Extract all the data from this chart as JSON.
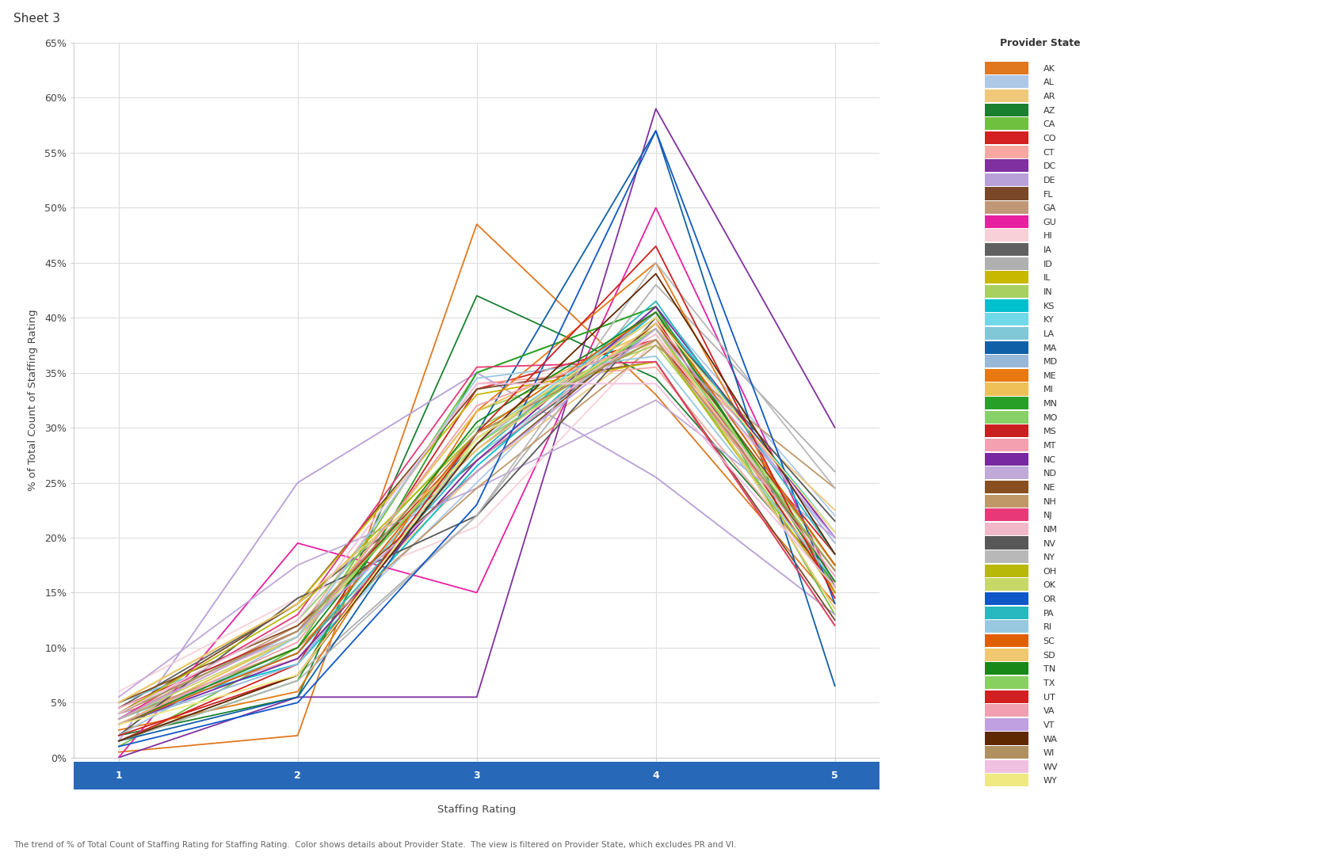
{
  "title": "Sheet 3",
  "xlabel": "Staffing Rating",
  "ylabel": "% of Total Count of Staffing Rating",
  "x_values": [
    1,
    2,
    3,
    4,
    5
  ],
  "subtitle": "The trend of % of Total Count of Staffing Rating for Staffing Rating.  Color shows details about Provider State.  The view is filtered on Provider State, which excludes PR and VI.",
  "background_color": "#ffffff",
  "plot_background": "#ffffff",
  "grid_color": "#dddddd",
  "x_axis_bar_color": "#2868b8",
  "states": [
    "AK",
    "AL",
    "AR",
    "AZ",
    "CA",
    "CO",
    "CT",
    "DC",
    "DE",
    "FL",
    "GA",
    "GU",
    "HI",
    "IA",
    "ID",
    "IL",
    "IN",
    "KS",
    "KY",
    "LA",
    "MA",
    "MD",
    "ME",
    "MI",
    "MN",
    "MO",
    "MS",
    "MT",
    "NC",
    "ND",
    "NE",
    "NH",
    "NJ",
    "NM",
    "NV",
    "NY",
    "OH",
    "OK",
    "OR",
    "PA",
    "RI",
    "SC",
    "SD",
    "TN",
    "TX",
    "UT",
    "VA",
    "VT",
    "WA",
    "WI",
    "WV",
    "WY"
  ],
  "colors": {
    "AK": "#e07820",
    "AL": "#aec8e8",
    "AR": "#f0c87a",
    "AZ": "#1a8030",
    "CA": "#70c040",
    "CO": "#d42020",
    "CT": "#f8a8a0",
    "DC": "#8030a0",
    "DE": "#b8a0d8",
    "FL": "#7a4828",
    "GA": "#c09878",
    "GU": "#e820a0",
    "HI": "#f8d0d8",
    "IA": "#606060",
    "ID": "#b0b0b0",
    "IL": "#c8b800",
    "IN": "#a8d060",
    "KS": "#00c0d0",
    "KY": "#70d8e8",
    "LA": "#80c8d8",
    "MA": "#1060a8",
    "MD": "#98b8d8",
    "ME": "#e87810",
    "MI": "#f0c058",
    "MN": "#28a028",
    "MO": "#88d068",
    "MS": "#c82020",
    "MT": "#f4a0b0",
    "NC": "#7828a0",
    "ND": "#c0a8d8",
    "NE": "#885020",
    "NH": "#c09868",
    "NJ": "#e83878",
    "NM": "#f0b8c8",
    "NV": "#585858",
    "NY": "#b8b8b8",
    "OH": "#b8b808",
    "OK": "#c8d868",
    "OR": "#1058c8",
    "PA": "#28b8c0",
    "RI": "#98c8e0",
    "SC": "#e06000",
    "SD": "#f0c870",
    "TN": "#188818",
    "TX": "#88d060",
    "UT": "#d02020",
    "VA": "#f0a0b0",
    "VT": "#c0a0e0",
    "WA": "#602800",
    "WI": "#b09060",
    "WV": "#f0c0e0",
    "WY": "#f0e880"
  },
  "data": {
    "AK": [
      0.5,
      2.0,
      48.5,
      33.0,
      14.0
    ],
    "AL": [
      3.0,
      9.0,
      25.0,
      41.0,
      22.0
    ],
    "AR": [
      3.5,
      10.0,
      26.0,
      38.0,
      22.5
    ],
    "AZ": [
      2.0,
      5.5,
      42.0,
      34.5,
      16.0
    ],
    "CA": [
      1.0,
      10.0,
      35.0,
      41.0,
      13.0
    ],
    "CO": [
      1.5,
      8.5,
      33.5,
      38.0,
      18.5
    ],
    "CT": [
      3.5,
      11.5,
      34.0,
      35.5,
      15.5
    ],
    "DC": [
      0.0,
      5.5,
      5.5,
      59.0,
      30.0
    ],
    "DE": [
      1.5,
      25.0,
      35.0,
      25.5,
      13.0
    ],
    "FL": [
      4.0,
      14.0,
      33.5,
      36.0,
      12.5
    ],
    "GA": [
      3.5,
      12.0,
      28.0,
      40.5,
      16.0
    ],
    "GU": [
      0.0,
      19.5,
      15.0,
      50.0,
      15.5
    ],
    "HI": [
      6.0,
      14.5,
      21.0,
      38.0,
      20.5
    ],
    "IA": [
      4.5,
      14.0,
      27.0,
      39.0,
      15.5
    ],
    "ID": [
      1.5,
      7.5,
      22.0,
      43.0,
      26.0
    ],
    "IL": [
      5.0,
      14.0,
      33.0,
      36.0,
      12.0
    ],
    "IN": [
      3.0,
      11.0,
      31.5,
      37.5,
      17.0
    ],
    "KS": [
      4.0,
      8.5,
      26.5,
      40.5,
      20.5
    ],
    "KY": [
      3.5,
      9.5,
      29.0,
      40.5,
      17.5
    ],
    "LA": [
      5.0,
      11.0,
      27.5,
      39.0,
      17.5
    ],
    "MA": [
      1.5,
      5.5,
      29.5,
      57.0,
      6.5
    ],
    "MD": [
      3.0,
      8.5,
      28.5,
      40.5,
      19.5
    ],
    "ME": [
      2.5,
      6.0,
      31.5,
      45.0,
      15.0
    ],
    "MI": [
      3.0,
      11.0,
      31.5,
      39.0,
      15.5
    ],
    "MN": [
      1.5,
      7.0,
      35.0,
      41.0,
      15.5
    ],
    "MO": [
      4.0,
      12.5,
      30.0,
      38.0,
      15.5
    ],
    "MS": [
      4.5,
      11.5,
      29.0,
      40.0,
      15.0
    ],
    "MT": [
      4.0,
      9.0,
      27.0,
      39.5,
      20.5
    ],
    "NC": [
      3.0,
      9.0,
      27.0,
      41.0,
      20.0
    ],
    "ND": [
      5.5,
      17.5,
      24.5,
      32.5,
      20.0
    ],
    "NE": [
      5.0,
      12.0,
      26.0,
      39.5,
      17.5
    ],
    "NH": [
      3.5,
      10.0,
      24.5,
      37.5,
      24.5
    ],
    "NJ": [
      3.5,
      13.0,
      35.5,
      36.0,
      12.0
    ],
    "NM": [
      4.5,
      11.0,
      29.0,
      38.5,
      17.0
    ],
    "NV": [
      2.0,
      14.5,
      22.0,
      40.0,
      21.5
    ],
    "NY": [
      1.5,
      7.0,
      22.0,
      45.0,
      24.5
    ],
    "OH": [
      4.0,
      13.5,
      29.5,
      38.0,
      15.0
    ],
    "OK": [
      3.5,
      11.0,
      29.0,
      39.0,
      17.5
    ],
    "OR": [
      1.0,
      5.0,
      23.0,
      57.0,
      14.0
    ],
    "PA": [
      3.0,
      9.5,
      27.5,
      41.5,
      18.5
    ],
    "RI": [
      2.0,
      11.0,
      34.5,
      36.5,
      16.0
    ],
    "SC": [
      3.0,
      9.5,
      29.5,
      40.5,
      17.5
    ],
    "SD": [
      5.0,
      14.0,
      28.0,
      39.5,
      13.5
    ],
    "TN": [
      3.0,
      10.0,
      30.5,
      40.5,
      16.0
    ],
    "TX": [
      4.0,
      11.5,
      28.5,
      39.0,
      17.0
    ],
    "UT": [
      2.0,
      7.5,
      29.5,
      46.5,
      14.5
    ],
    "VA": [
      3.0,
      10.5,
      32.0,
      38.0,
      16.5
    ],
    "VT": [
      3.5,
      11.5,
      26.0,
      39.0,
      20.0
    ],
    "WA": [
      1.5,
      7.5,
      28.5,
      44.0,
      18.5
    ],
    "WI": [
      4.0,
      11.5,
      29.5,
      38.0,
      17.0
    ],
    "WV": [
      4.0,
      12.5,
      34.0,
      34.0,
      15.5
    ],
    "WY": [
      3.0,
      7.5,
      29.0,
      40.0,
      20.5
    ]
  },
  "ylim": [
    0,
    65
  ],
  "yticks": [
    0,
    5,
    10,
    15,
    20,
    25,
    30,
    35,
    40,
    45,
    50,
    55,
    60,
    65
  ],
  "ytick_labels": [
    "0%",
    "5%",
    "10%",
    "15%",
    "20%",
    "25%",
    "30%",
    "35%",
    "40%",
    "45%",
    "50%",
    "55%",
    "60%",
    "65%"
  ],
  "xlim": [
    0.75,
    5.25
  ],
  "xticks": [
    1,
    2,
    3,
    4,
    5
  ]
}
